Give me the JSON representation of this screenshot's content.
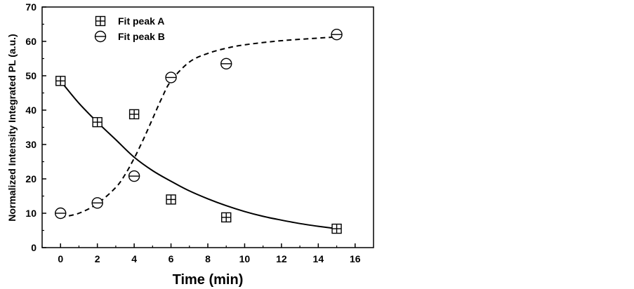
{
  "chart_data": {
    "type": "scatter",
    "xlabel": "Time (min)",
    "ylabel": "Normalized Intensity Integrated PL (a.u.)",
    "xlim": [
      -1,
      17
    ],
    "ylim": [
      0,
      70
    ],
    "xticks": [
      0,
      2,
      4,
      6,
      8,
      10,
      12,
      14,
      16
    ],
    "yticks": [
      0,
      10,
      20,
      30,
      40,
      50,
      60,
      70
    ],
    "grid": false,
    "legend_position": "top-left",
    "series": [
      {
        "name": "Fit peak A",
        "marker": "square-plus",
        "x": [
          0,
          2,
          4,
          6,
          9,
          15
        ],
        "y": [
          48.5,
          36.5,
          38.8,
          14,
          8.8,
          5.5
        ],
        "fit": {
          "style": "solid",
          "x": [
            0,
            1,
            2,
            3,
            4,
            5,
            6,
            7,
            8,
            9,
            10,
            11,
            12,
            13,
            14,
            15
          ],
          "y": [
            48.5,
            42.0,
            36.5,
            31.4,
            26.3,
            22.4,
            19.3,
            16.5,
            14.2,
            12.2,
            10.5,
            9.1,
            8.0,
            7.0,
            6.2,
            5.5
          ]
        }
      },
      {
        "name": "Fit peak B",
        "marker": "circle-minus",
        "x": [
          0,
          2,
          4,
          6,
          9,
          15
        ],
        "y": [
          10,
          13,
          20.8,
          49.5,
          53.5,
          62
        ],
        "fit": {
          "style": "dashed",
          "x": [
            0,
            1,
            2,
            3,
            3.5,
            4,
            4.5,
            5,
            5.5,
            6,
            7,
            8,
            9,
            10,
            12,
            15
          ],
          "y": [
            8.8,
            10.0,
            12.8,
            17.5,
            21.2,
            26.0,
            31.5,
            37.5,
            43.5,
            48.5,
            54.0,
            56.5,
            58.0,
            59.0,
            60.2,
            61.3
          ]
        }
      }
    ]
  }
}
